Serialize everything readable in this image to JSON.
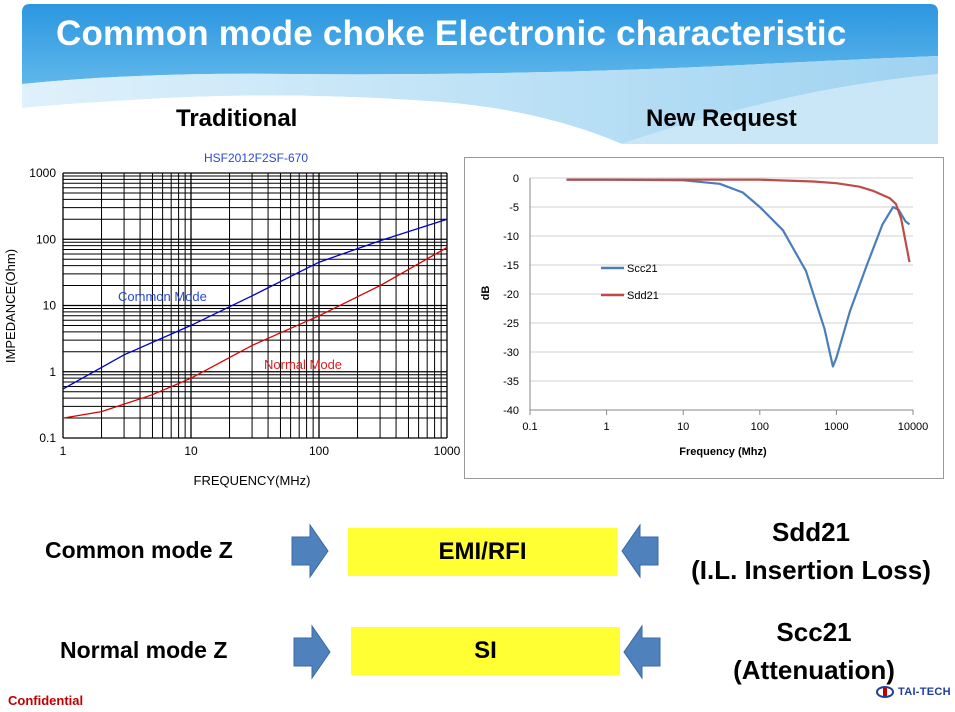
{
  "title": "Common mode choke Electronic characteristic",
  "headers": {
    "left": "Traditional",
    "right": "New Request"
  },
  "colors": {
    "banner_dark": "#1e8ad6",
    "banner_light": "#a9d8f3",
    "box_yellow": "#ffff33",
    "arrow_blue": "#4f81bd",
    "common_mode": "#0000cc",
    "normal_mode": "#dd0000",
    "scc21": "#4a7ebb",
    "sdd21": "#be4b48"
  },
  "left_chart": {
    "title": "HSF2012F2SF-670",
    "xlabel": "FREQUENCY(MHz)",
    "ylabel": "IMPEDANCE(Ohm)",
    "x_ticks": [
      "1",
      "10",
      "100",
      "1000"
    ],
    "y_ticks": [
      "1000",
      "100",
      "10",
      "1",
      "0.1"
    ],
    "annotations": {
      "common": "Common Mode",
      "normal": "Normal Mode"
    }
  },
  "right_chart": {
    "xlabel": "Frequency (Mhz)",
    "ylabel": "dB",
    "x_ticks": [
      "0.1",
      "1",
      "10",
      "100",
      "1000",
      "10000"
    ],
    "y_ticks": [
      "0",
      "-5",
      "-10",
      "-15",
      "-20",
      "-25",
      "-30",
      "-35",
      "-40"
    ],
    "legend": [
      "Scc21",
      "Sdd21"
    ]
  },
  "chart_data": [
    {
      "type": "line",
      "title": "HSF2012F2SF-670",
      "xlabel": "FREQUENCY(MHz)",
      "ylabel": "IMPEDANCE(Ohm)",
      "x_scale": "log",
      "y_scale": "log",
      "xlim": [
        1,
        1000
      ],
      "ylim": [
        0.1,
        1000
      ],
      "grid": true,
      "series": [
        {
          "name": "Common Mode",
          "x": [
            1,
            3,
            10,
            30,
            100,
            300,
            1000
          ],
          "y": [
            0.55,
            1.8,
            5,
            14,
            45,
            95,
            200
          ]
        },
        {
          "name": "Normal Mode",
          "x": [
            1,
            2,
            5,
            10,
            30,
            100,
            300,
            1000
          ],
          "y": [
            0.2,
            0.25,
            0.45,
            0.8,
            2.5,
            7,
            20,
            75
          ]
        }
      ]
    },
    {
      "type": "line",
      "xlabel": "Frequency (Mhz)",
      "ylabel": "dB",
      "x_scale": "log",
      "xlim": [
        0.1,
        10000
      ],
      "ylim": [
        -40,
        0
      ],
      "grid": true,
      "legend": "left",
      "series": [
        {
          "name": "Scc21",
          "x": [
            0.3,
            1,
            10,
            30,
            60,
            100,
            200,
            400,
            700,
            900,
            1000,
            1500,
            2500,
            4000,
            5500,
            6500,
            8000,
            9000
          ],
          "y": [
            -0.3,
            -0.3,
            -0.4,
            -1,
            -2.5,
            -5,
            -9,
            -16,
            -26,
            -32.5,
            -31,
            -23,
            -15,
            -8,
            -5,
            -5.5,
            -7.5,
            -8
          ]
        },
        {
          "name": "Sdd21",
          "x": [
            0.3,
            1,
            10,
            100,
            500,
            1000,
            2000,
            3000,
            5000,
            6000,
            7000,
            8000,
            9000
          ],
          "y": [
            -0.3,
            -0.3,
            -0.3,
            -0.3,
            -0.6,
            -0.9,
            -1.5,
            -2.2,
            -3.5,
            -4.5,
            -7,
            -11,
            -14.5
          ]
        }
      ]
    }
  ],
  "rows": [
    {
      "left": "Common mode Z",
      "box": "EMI/RFI",
      "right_line1": "Sdd21",
      "right_line2": "(I.L. Insertion Loss)"
    },
    {
      "left": "Normal mode Z",
      "box": "SI",
      "right_line1": "Scc21",
      "right_line2": "(Attenuation)"
    }
  ],
  "footer": {
    "confidential": "Confidential",
    "logo_text": "TAI-TECH"
  }
}
